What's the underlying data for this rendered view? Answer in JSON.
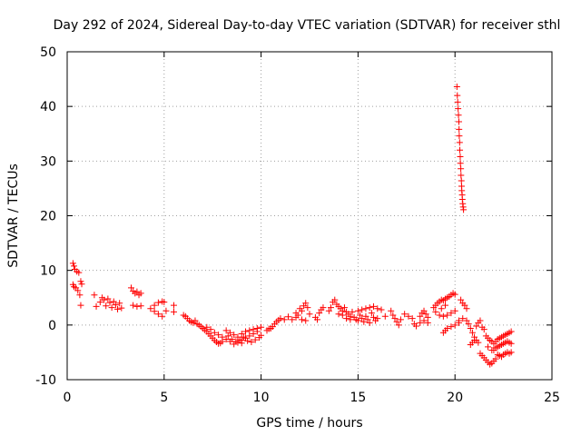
{
  "chart_data": {
    "type": "scatter",
    "title": "Day 292 of 2024, Sidereal Day-to-day VTEC variation (SDTVAR) for receiver sthl",
    "xlabel": "GPS time / hours",
    "ylabel": "SDTVAR / TECUs",
    "xlim": [
      0,
      25
    ],
    "ylim": [
      -10,
      50
    ],
    "xticks": [
      0,
      5,
      10,
      15,
      20,
      25
    ],
    "yticks": [
      -10,
      0,
      10,
      20,
      30,
      40,
      50
    ],
    "grid": true,
    "marker": "+",
    "color": "#ff0000",
    "series": [
      {
        "name": "SDTVAR",
        "points": [
          [
            0.3,
            11.3
          ],
          [
            0.35,
            10.8
          ],
          [
            0.4,
            10.2
          ],
          [
            0.5,
            9.8
          ],
          [
            0.6,
            9.6
          ],
          [
            0.7,
            8.0
          ],
          [
            0.75,
            7.5
          ],
          [
            0.3,
            7.4
          ],
          [
            0.35,
            7.0
          ],
          [
            0.45,
            6.8
          ],
          [
            0.55,
            6.3
          ],
          [
            0.65,
            5.5
          ],
          [
            0.7,
            3.6
          ],
          [
            1.4,
            5.5
          ],
          [
            1.5,
            3.4
          ],
          [
            1.7,
            4.2
          ],
          [
            1.8,
            5.0
          ],
          [
            1.9,
            4.6
          ],
          [
            2.0,
            3.5
          ],
          [
            2.1,
            4.8
          ],
          [
            2.2,
            4.1
          ],
          [
            2.3,
            3.2
          ],
          [
            2.4,
            4.3
          ],
          [
            2.5,
            3.7
          ],
          [
            2.6,
            2.9
          ],
          [
            2.7,
            4.0
          ],
          [
            2.8,
            3.1
          ],
          [
            3.3,
            6.8
          ],
          [
            3.4,
            6.2
          ],
          [
            3.5,
            5.8
          ],
          [
            3.6,
            6.1
          ],
          [
            3.7,
            5.5
          ],
          [
            3.8,
            5.8
          ],
          [
            3.4,
            3.6
          ],
          [
            3.6,
            3.4
          ],
          [
            3.8,
            3.5
          ],
          [
            4.3,
            3.0
          ],
          [
            4.5,
            3.6
          ],
          [
            4.7,
            4.1
          ],
          [
            4.9,
            4.3
          ],
          [
            5.0,
            4.2
          ],
          [
            4.5,
            2.5
          ],
          [
            4.7,
            2.0
          ],
          [
            4.9,
            1.6
          ],
          [
            5.1,
            2.6
          ],
          [
            5.5,
            3.6
          ],
          [
            5.5,
            2.4
          ],
          [
            6.0,
            1.8
          ],
          [
            6.1,
            1.6
          ],
          [
            6.2,
            1.2
          ],
          [
            6.3,
            0.8
          ],
          [
            6.4,
            0.6
          ],
          [
            6.5,
            0.4
          ],
          [
            6.6,
            0.8
          ],
          [
            6.7,
            0.2
          ],
          [
            6.8,
            0.0
          ],
          [
            6.9,
            -0.3
          ],
          [
            7.0,
            -0.6
          ],
          [
            7.1,
            -0.9
          ],
          [
            7.2,
            -1.2
          ],
          [
            7.3,
            -1.6
          ],
          [
            7.4,
            -2.0
          ],
          [
            7.5,
            -2.4
          ],
          [
            7.6,
            -2.8
          ],
          [
            7.7,
            -3.1
          ],
          [
            7.8,
            -3.4
          ],
          [
            7.9,
            -3.3
          ],
          [
            8.0,
            -3.0
          ],
          [
            7.2,
            -0.4
          ],
          [
            7.4,
            -0.8
          ],
          [
            7.6,
            -1.4
          ],
          [
            7.8,
            -1.8
          ],
          [
            8.0,
            -2.2
          ],
          [
            8.2,
            -2.6
          ],
          [
            8.4,
            -3.0
          ],
          [
            8.6,
            -3.5
          ],
          [
            8.8,
            -3.2
          ],
          [
            9.0,
            -2.8
          ],
          [
            9.2,
            -2.4
          ],
          [
            9.4,
            -2.0
          ],
          [
            9.6,
            -1.6
          ],
          [
            9.8,
            -1.2
          ],
          [
            8.2,
            -1.0
          ],
          [
            8.4,
            -1.4
          ],
          [
            8.6,
            -1.8
          ],
          [
            8.8,
            -2.2
          ],
          [
            9.0,
            -1.6
          ],
          [
            9.2,
            -1.2
          ],
          [
            9.4,
            -1.0
          ],
          [
            9.6,
            -0.8
          ],
          [
            9.8,
            -0.6
          ],
          [
            10.0,
            -0.4
          ],
          [
            8.5,
            -2.6
          ],
          [
            8.7,
            -3.0
          ],
          [
            8.9,
            -2.7
          ],
          [
            9.1,
            -2.2
          ],
          [
            9.3,
            -2.9
          ],
          [
            9.5,
            -3.1
          ],
          [
            9.7,
            -2.7
          ],
          [
            9.9,
            -2.3
          ],
          [
            10.0,
            -1.9
          ],
          [
            8.3,
            -2.0
          ],
          [
            9.0,
            -3.3
          ],
          [
            10.5,
            -0.6
          ],
          [
            10.6,
            -0.3
          ],
          [
            10.7,
            0.2
          ],
          [
            10.8,
            0.6
          ],
          [
            10.9,
            0.9
          ],
          [
            11.0,
            1.2
          ],
          [
            10.3,
            -1.0
          ],
          [
            10.4,
            -0.7
          ],
          [
            11.2,
            1.0
          ],
          [
            11.4,
            1.5
          ],
          [
            11.6,
            1.0
          ],
          [
            11.8,
            1.4
          ],
          [
            11.8,
            2.2
          ],
          [
            11.9,
            1.8
          ],
          [
            12.0,
            3.0
          ],
          [
            12.1,
            2.6
          ],
          [
            12.2,
            3.5
          ],
          [
            12.3,
            4.0
          ],
          [
            12.4,
            3.2
          ],
          [
            12.1,
            1.0
          ],
          [
            12.3,
            0.8
          ],
          [
            12.5,
            2.0
          ],
          [
            12.8,
            1.4
          ],
          [
            13.0,
            2.2
          ],
          [
            13.1,
            2.8
          ],
          [
            13.2,
            3.2
          ],
          [
            12.9,
            1.0
          ],
          [
            13.5,
            2.6
          ],
          [
            13.6,
            3.2
          ],
          [
            13.7,
            4.2
          ],
          [
            13.8,
            4.6
          ],
          [
            13.9,
            3.8
          ],
          [
            14.0,
            3.4
          ],
          [
            14.1,
            3.0
          ],
          [
            14.2,
            2.6
          ],
          [
            14.3,
            3.2
          ],
          [
            14.4,
            2.4
          ],
          [
            14.5,
            2.0
          ],
          [
            14.6,
            1.6
          ],
          [
            14.7,
            2.4
          ],
          [
            14.8,
            1.4
          ],
          [
            14.9,
            1.0
          ],
          [
            15.0,
            0.8
          ],
          [
            15.1,
            1.8
          ],
          [
            15.2,
            1.2
          ],
          [
            15.3,
            0.6
          ],
          [
            15.4,
            1.6
          ],
          [
            15.5,
            1.0
          ],
          [
            15.6,
            0.4
          ],
          [
            15.7,
            2.2
          ],
          [
            15.8,
            1.4
          ],
          [
            15.9,
            0.8
          ],
          [
            16.0,
            1.2
          ],
          [
            14.0,
            2.0
          ],
          [
            14.2,
            1.8
          ],
          [
            14.4,
            1.2
          ],
          [
            14.6,
            1.0
          ],
          [
            15.0,
            2.6
          ],
          [
            15.2,
            2.8
          ],
          [
            15.4,
            3.0
          ],
          [
            15.6,
            3.2
          ],
          [
            15.8,
            3.4
          ],
          [
            16.0,
            3.0
          ],
          [
            16.2,
            2.8
          ],
          [
            16.4,
            1.6
          ],
          [
            16.7,
            2.6
          ],
          [
            16.8,
            1.8
          ],
          [
            16.9,
            1.2
          ],
          [
            17.0,
            0.6
          ],
          [
            17.1,
            0.0
          ],
          [
            17.2,
            1.0
          ],
          [
            17.4,
            2.0
          ],
          [
            17.6,
            1.6
          ],
          [
            17.8,
            1.2
          ],
          [
            18.2,
            1.6
          ],
          [
            18.3,
            2.2
          ],
          [
            18.4,
            2.6
          ],
          [
            18.5,
            2.0
          ],
          [
            18.6,
            1.4
          ],
          [
            17.9,
            0.2
          ],
          [
            18.0,
            -0.2
          ],
          [
            18.2,
            0.4
          ],
          [
            18.4,
            0.8
          ],
          [
            18.6,
            0.4
          ],
          [
            18.9,
            3.2
          ],
          [
            19.0,
            3.6
          ],
          [
            19.1,
            4.0
          ],
          [
            19.2,
            4.3
          ],
          [
            19.3,
            4.6
          ],
          [
            19.4,
            4.5
          ],
          [
            19.5,
            4.8
          ],
          [
            19.6,
            5.0
          ],
          [
            19.7,
            5.2
          ],
          [
            19.8,
            5.5
          ],
          [
            19.9,
            5.8
          ],
          [
            20.0,
            5.6
          ],
          [
            19.3,
            3.0
          ],
          [
            19.5,
            3.6
          ],
          [
            19.0,
            2.4
          ],
          [
            19.2,
            1.8
          ],
          [
            19.4,
            1.6
          ],
          [
            19.6,
            1.8
          ],
          [
            19.8,
            2.2
          ],
          [
            20.0,
            2.6
          ],
          [
            19.4,
            -1.4
          ],
          [
            19.5,
            -1.0
          ],
          [
            19.6,
            -0.6
          ],
          [
            19.8,
            -0.3
          ],
          [
            20.0,
            0.0
          ],
          [
            20.2,
            0.4
          ],
          [
            20.3,
            4.6
          ],
          [
            20.4,
            4.0
          ],
          [
            20.5,
            3.6
          ],
          [
            20.6,
            3.0
          ],
          [
            20.2,
            0.8
          ],
          [
            20.4,
            1.2
          ],
          [
            20.1,
            43.6
          ],
          [
            20.12,
            42.0
          ],
          [
            20.14,
            40.8
          ],
          [
            20.16,
            39.6
          ],
          [
            20.18,
            38.4
          ],
          [
            20.2,
            37.2
          ],
          [
            20.21,
            35.8
          ],
          [
            20.22,
            34.6
          ],
          [
            20.24,
            33.4
          ],
          [
            20.25,
            32.0
          ],
          [
            20.27,
            30.8
          ],
          [
            20.28,
            29.6
          ],
          [
            20.3,
            28.6
          ],
          [
            20.31,
            27.4
          ],
          [
            20.33,
            26.4
          ],
          [
            20.34,
            25.4
          ],
          [
            20.35,
            24.6
          ],
          [
            20.37,
            23.8
          ],
          [
            20.38,
            23.0
          ],
          [
            20.4,
            22.2
          ],
          [
            20.42,
            21.6
          ],
          [
            20.44,
            21.1
          ],
          [
            20.6,
            0.8
          ],
          [
            20.7,
            0.2
          ],
          [
            20.8,
            -0.6
          ],
          [
            20.9,
            -1.4
          ],
          [
            21.0,
            -2.2
          ],
          [
            21.1,
            -2.8
          ],
          [
            21.2,
            -3.2
          ],
          [
            20.8,
            -3.6
          ],
          [
            20.9,
            -3.2
          ],
          [
            21.0,
            -2.8
          ],
          [
            21.1,
            -0.2
          ],
          [
            21.2,
            0.4
          ],
          [
            21.3,
            0.8
          ],
          [
            21.4,
            -0.4
          ],
          [
            21.5,
            -0.8
          ],
          [
            21.3,
            -5.2
          ],
          [
            21.4,
            -5.6
          ],
          [
            21.5,
            -6.0
          ],
          [
            21.6,
            -6.4
          ],
          [
            21.7,
            -6.8
          ],
          [
            21.8,
            -7.2
          ],
          [
            21.9,
            -7.0
          ],
          [
            22.0,
            -6.6
          ],
          [
            22.1,
            -6.2
          ],
          [
            21.6,
            -2.0
          ],
          [
            21.7,
            -2.4
          ],
          [
            21.8,
            -2.8
          ],
          [
            21.9,
            -3.0
          ],
          [
            22.0,
            -3.4
          ],
          [
            22.1,
            -3.0
          ],
          [
            22.2,
            -2.6
          ],
          [
            22.3,
            -2.4
          ],
          [
            22.4,
            -2.2
          ],
          [
            22.5,
            -2.0
          ],
          [
            22.6,
            -1.8
          ],
          [
            22.7,
            -1.6
          ],
          [
            22.8,
            -1.4
          ],
          [
            22.9,
            -1.2
          ],
          [
            22.0,
            -4.6
          ],
          [
            22.1,
            -4.2
          ],
          [
            22.2,
            -4.0
          ],
          [
            22.3,
            -3.8
          ],
          [
            22.4,
            -3.6
          ],
          [
            22.5,
            -3.4
          ],
          [
            22.6,
            -3.2
          ],
          [
            22.7,
            -3.0
          ],
          [
            22.8,
            -3.2
          ],
          [
            22.9,
            -3.4
          ],
          [
            22.2,
            -5.4
          ],
          [
            22.3,
            -5.6
          ],
          [
            22.4,
            -5.8
          ],
          [
            22.5,
            -5.4
          ],
          [
            22.6,
            -5.2
          ],
          [
            22.7,
            -5.0
          ],
          [
            22.8,
            -5.2
          ],
          [
            22.9,
            -5.0
          ],
          [
            21.7,
            -4.0
          ],
          [
            21.9,
            -4.6
          ]
        ]
      }
    ]
  }
}
